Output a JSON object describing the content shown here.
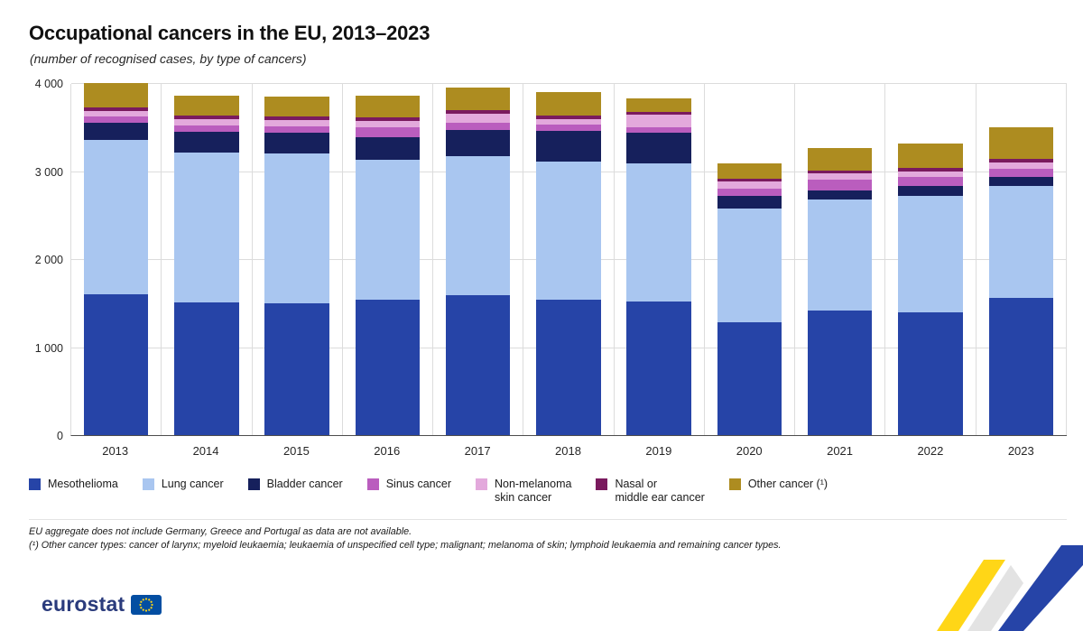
{
  "header": {
    "title": "Occupational cancers in the EU, 2013–2023",
    "subtitle": "(number of recognised cases, by type of cancers)"
  },
  "chart_data": {
    "type": "bar",
    "stacked": true,
    "title": "Occupational cancers in the EU, 2013–2023",
    "subtitle": "(number of recognised cases, by type of cancers)",
    "categories": [
      "2013",
      "2014",
      "2015",
      "2016",
      "2017",
      "2018",
      "2019",
      "2020",
      "2021",
      "2022",
      "2023"
    ],
    "series": [
      {
        "name": "Mesothelioma",
        "legend_label": "Mesothelioma",
        "color": "#2644a7",
        "values": [
          1600,
          1510,
          1500,
          1540,
          1590,
          1540,
          1520,
          1280,
          1420,
          1390,
          1560
        ]
      },
      {
        "name": "Lung cancer",
        "legend_label": "Lung cancer",
        "color": "#a9c6f0",
        "values": [
          1750,
          1700,
          1700,
          1590,
          1580,
          1570,
          1570,
          1290,
          1260,
          1330,
          1270
        ]
      },
      {
        "name": "Bladder cancer",
        "legend_label": "Bladder cancer",
        "color": "#16205c",
        "values": [
          200,
          240,
          240,
          260,
          300,
          350,
          350,
          150,
          100,
          110,
          100
        ]
      },
      {
        "name": "Sinus cancer",
        "legend_label": "Sinus cancer",
        "color": "#ba5dbe",
        "values": [
          70,
          70,
          70,
          110,
          80,
          70,
          60,
          80,
          120,
          100,
          100
        ]
      },
      {
        "name": "Non-melanoma skin cancer",
        "legend_label": "Non-melanoma\nskin cancer",
        "color": "#e3a9dc",
        "values": [
          60,
          70,
          70,
          70,
          100,
          60,
          140,
          80,
          70,
          70,
          70
        ]
      },
      {
        "name": "Nasal or middle ear cancer",
        "legend_label": "Nasal or\nmiddle ear cancer",
        "color": "#7a1a5e",
        "values": [
          40,
          40,
          40,
          40,
          40,
          40,
          30,
          30,
          40,
          40,
          40
        ]
      },
      {
        "name": "Other cancer (¹)",
        "legend_label": "Other cancer (¹)",
        "color": "#ad8c20",
        "values": [
          280,
          230,
          230,
          250,
          260,
          270,
          160,
          180,
          250,
          270,
          360
        ]
      }
    ],
    "ylim": [
      0,
      4000
    ],
    "yticks": [
      {
        "value": 0,
        "label": "0"
      },
      {
        "value": 1000,
        "label": "1 000"
      },
      {
        "value": 2000,
        "label": "2 000"
      },
      {
        "value": 3000,
        "label": "3 000"
      },
      {
        "value": 4000,
        "label": "4 000"
      }
    ],
    "grid": true,
    "legend_position": "bottom"
  },
  "footnotes": {
    "line1": "EU aggregate does not include Germany, Greece and Portugal as data are not available.",
    "line2": "(¹) Other cancer types: cancer of larynx; myeloid leukaemia; leukaemia of unspecified cell type; malignant; melanoma of skin; lymphoid leukaemia and remaining cancer types."
  },
  "logo": {
    "text": "eurostat"
  },
  "colors": {
    "accent_blue": "#2644a7",
    "accent_yellow": "#ffd617",
    "eu_flag_blue": "#034ea2",
    "gridline": "#dcdcdc",
    "baseline": "#4d4d4d"
  }
}
